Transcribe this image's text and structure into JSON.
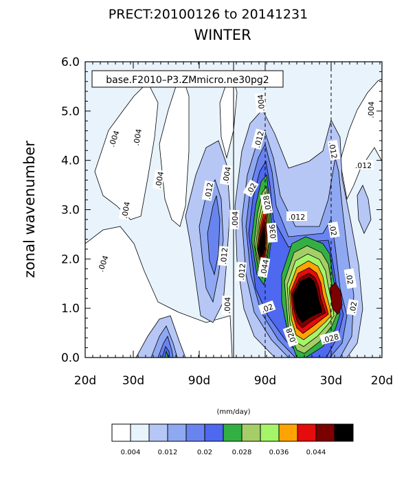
{
  "chart_data": {
    "type": "contour",
    "title": "PRECT:20100126 to 20141231",
    "subtitle": "WINTER",
    "case_label": "base.F2010–P3.ZMmicro.ne30pg2",
    "xlabel": "",
    "ylabel": "zonal wavenumber",
    "ylim": [
      0,
      6
    ],
    "y_ticks": [
      "0.0",
      "1.0",
      "2.0",
      "3.0",
      "4.0",
      "5.0",
      "6.0"
    ],
    "x_ticks": [
      "20d",
      "30d",
      "90d",
      "",
      "90d",
      "30d",
      "20d"
    ],
    "contour_levels": [
      0.004,
      0.008,
      0.012,
      0.016,
      0.02,
      0.024,
      0.028,
      0.032,
      0.036,
      0.04,
      0.044,
      0.048
    ],
    "contour_labels": [
      ".004",
      ".004",
      ".004",
      ".004",
      ".004",
      ".004",
      ".004",
      ".004",
      ".004",
      ".012",
      ".012",
      ".012",
      ".012",
      ".012",
      ".012",
      ".012",
      ".02",
      ".02",
      ".02",
      ".02",
      ".02",
      ".028",
      ".028",
      ".028",
      ".036",
      ".044",
      ".004"
    ],
    "colorbar": {
      "unit_label": "(mm/day)",
      "colors": [
        "#ffffff",
        "#e8f3fc",
        "#b6c6f5",
        "#8fa8f2",
        "#6a84ef",
        "#4e68f0",
        "#33b044",
        "#a6ce68",
        "#a4f568",
        "#ffa305",
        "#e40c0c",
        "#7b0000",
        "#000000"
      ],
      "tick_labels": [
        "0.004",
        "0.012",
        "0.02",
        "0.028",
        "0.036",
        "0.044"
      ]
    }
  }
}
